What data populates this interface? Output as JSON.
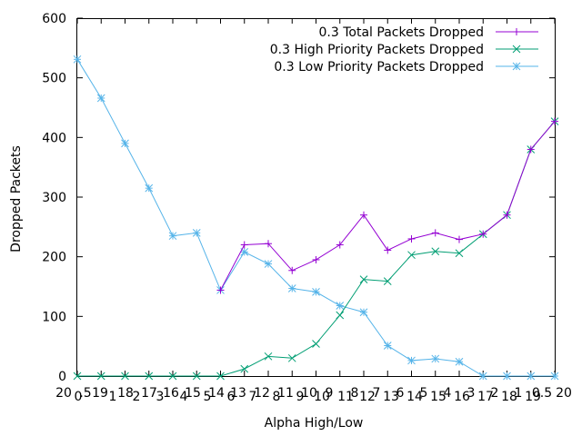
{
  "chart_data": {
    "type": "line",
    "title": "",
    "xlabel": "Alpha High/Low",
    "ylabel": "Dropped Packets",
    "ylim": [
      0,
      600
    ],
    "y_ticks": [
      0,
      100,
      200,
      300,
      400,
      500,
      600
    ],
    "grid": false,
    "legend_position": "top-right",
    "x_tick_labels": [
      "20",
      "0",
      ".5",
      "19",
      "1",
      "18",
      "2",
      "17",
      "3",
      "16",
      "4",
      "15",
      "5",
      "14",
      "6",
      "13",
      "7",
      "12",
      "8",
      "11",
      "9",
      "10",
      "10",
      "9",
      "11",
      "8",
      "12",
      "7",
      "13",
      "6",
      "14",
      "5",
      "15",
      "4",
      "16",
      "3",
      "17",
      "2",
      "18",
      "1",
      "19",
      "0.5",
      "20"
    ],
    "series": [
      {
        "name": "0.3 Total Packets Dropped",
        "color": "#9400d3",
        "marker": "plus",
        "values": [
          null,
          null,
          null,
          null,
          null,
          null,
          144,
          220,
          222,
          177,
          195,
          220,
          270,
          211,
          230,
          240,
          229,
          238,
          270,
          380,
          427
        ]
      },
      {
        "name": "0.3 High Priority Packets Dropped",
        "color": "#009e73",
        "marker": "cross",
        "values": [
          0,
          0,
          0,
          0,
          0,
          0,
          0,
          12,
          33,
          30,
          54,
          102,
          162,
          159,
          203,
          209,
          206,
          238,
          270,
          380,
          427
        ]
      },
      {
        "name": "0.3 Low Priority Packets Dropped",
        "color": "#56b4e9",
        "marker": "star",
        "values": [
          531,
          466,
          390,
          315,
          235,
          240,
          144,
          208,
          188,
          147,
          141,
          118,
          107,
          51,
          26,
          29,
          24,
          0,
          0,
          0,
          0
        ]
      }
    ]
  }
}
